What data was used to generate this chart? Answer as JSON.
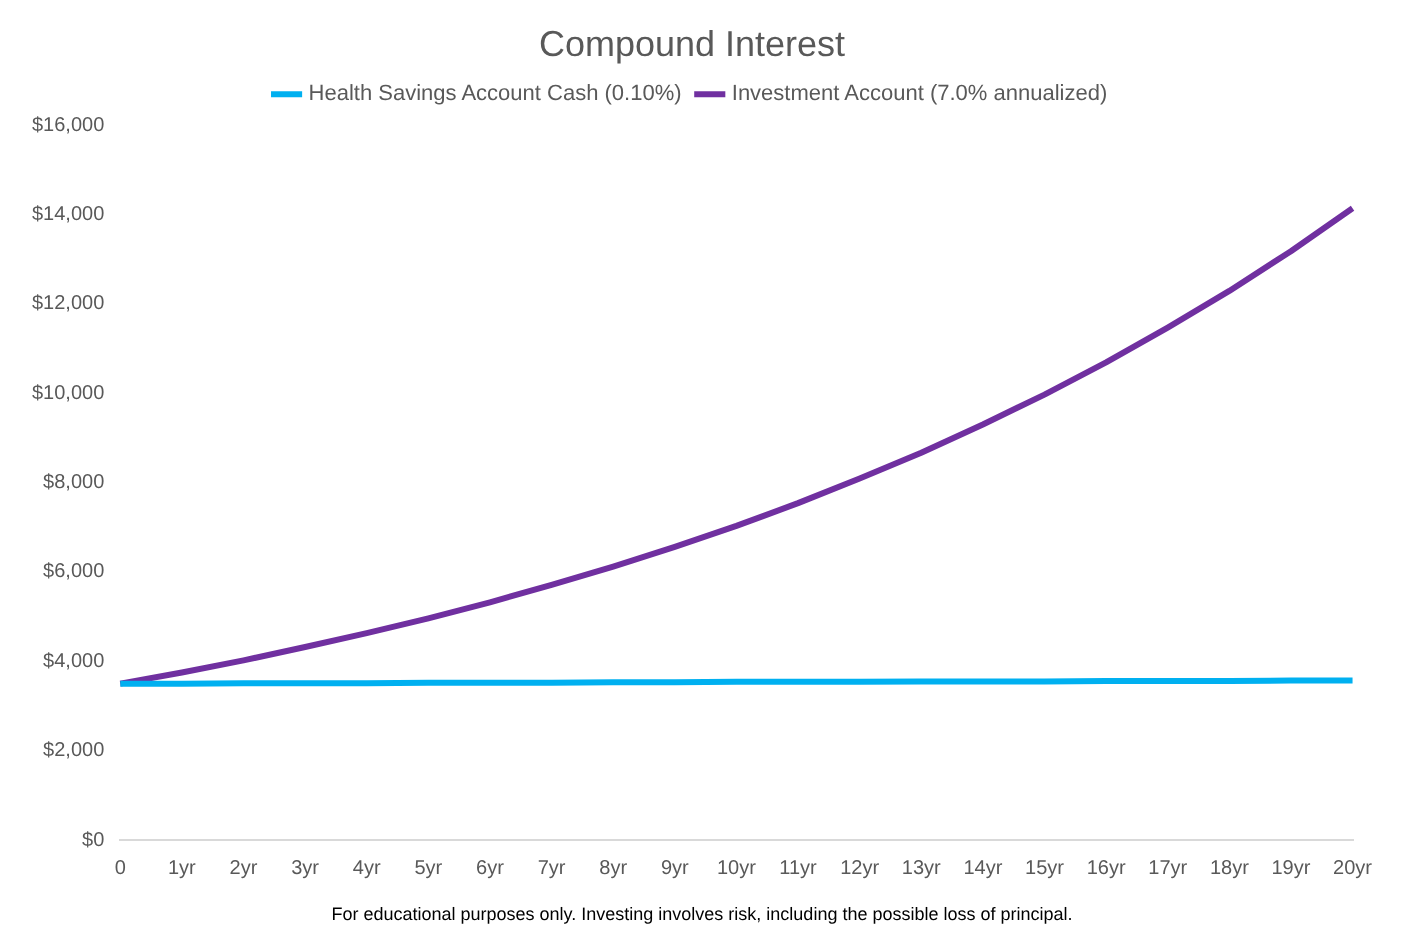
{
  "chart_data": {
    "type": "line",
    "title": "Compound Interest",
    "categories": [
      "0",
      "1yr",
      "2yr",
      "3yr",
      "4yr",
      "5yr",
      "6yr",
      "7yr",
      "8yr",
      "9yr",
      "10yr",
      "11yr",
      "12yr",
      "13yr",
      "14yr",
      "15yr",
      "16yr",
      "17yr",
      "18yr",
      "19yr",
      "20yr"
    ],
    "series": [
      {
        "name": "Health Savings Account Cash (0.10%)",
        "color": "#00b0f0",
        "values": [
          3500,
          3500,
          3510,
          3510,
          3510,
          3520,
          3520,
          3520,
          3530,
          3530,
          3540,
          3540,
          3540,
          3550,
          3550,
          3550,
          3560,
          3560,
          3560,
          3570,
          3570
        ]
      },
      {
        "name": "Investment Account (7.0% annualized)",
        "color": "#7030a0",
        "values": [
          3500,
          3750,
          4020,
          4320,
          4630,
          4960,
          5320,
          5710,
          6120,
          6560,
          7030,
          7540,
          8090,
          8670,
          9300,
          9970,
          10690,
          11470,
          12290,
          13180,
          14140
        ]
      }
    ],
    "ylim": [
      0,
      16000
    ],
    "yticks": [
      {
        "value": 0,
        "label": "$0"
      },
      {
        "value": 2000,
        "label": "$2,000"
      },
      {
        "value": 4000,
        "label": "$4,000"
      },
      {
        "value": 6000,
        "label": "$6,000"
      },
      {
        "value": 8000,
        "label": "$8,000"
      },
      {
        "value": 10000,
        "label": "$10,000"
      },
      {
        "value": 12000,
        "label": "$12,000"
      },
      {
        "value": 14000,
        "label": "$14,000"
      },
      {
        "value": 16000,
        "label": "$16,000"
      }
    ],
    "grid": false,
    "legend": "top",
    "marker": "none",
    "line_style": "solid",
    "annotations": [
      "For educational purposes only. Investing involves risk, including the possible loss of principal."
    ]
  }
}
